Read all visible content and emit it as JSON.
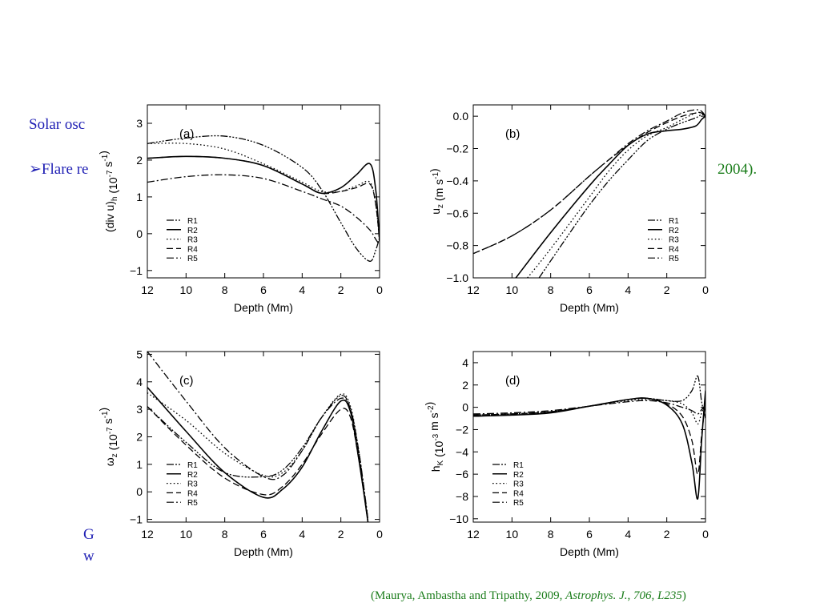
{
  "slide": {
    "line1": "Solar osc",
    "line2_bullet": "➢",
    "line2": "Flare re",
    "line2_end": "2004).",
    "line3a": "G",
    "line3b": "w"
  },
  "citation": {
    "pre": "(Maurya, Ambastha and Tripathy, 2009, ",
    "journal": "Astrophys. J., 706, L235",
    "post": ")"
  },
  "colors": {
    "slide_text": "#1f1fb4",
    "citation": "#1b7d1b",
    "curves": "#000000"
  },
  "chart_data": [
    {
      "panel": "(a)",
      "type": "line",
      "xlabel": "Depth (Mm)",
      "ylabel": "(div u)_h (10^-7 s^-1)",
      "xlim": [
        12,
        0
      ],
      "ylim": [
        -1.2,
        3.5
      ],
      "xticks": [
        12,
        10,
        8,
        6,
        4,
        2,
        0
      ],
      "yticks": [
        -1,
        0,
        1,
        2,
        3
      ],
      "legend": [
        "R1",
        "R2",
        "R3",
        "R4",
        "R5"
      ],
      "legend_position": "bottom-left",
      "series": [
        {
          "name": "R1",
          "x": [
            12,
            10,
            8,
            6,
            4,
            3,
            2,
            1.2,
            0.5,
            0.2,
            0
          ],
          "y": [
            2.45,
            2.6,
            2.65,
            2.4,
            1.8,
            1.2,
            0.3,
            -0.4,
            -0.75,
            -0.45,
            -0.1
          ]
        },
        {
          "name": "R2",
          "x": [
            12,
            10,
            8,
            6,
            4,
            3,
            2,
            1.2,
            0.5,
            0.2,
            0
          ],
          "y": [
            2.05,
            2.1,
            2.05,
            1.85,
            1.35,
            1.1,
            1.25,
            1.6,
            1.9,
            1.2,
            -0.2
          ]
        },
        {
          "name": "R3",
          "x": [
            12,
            10,
            8,
            6,
            4,
            3,
            2,
            1.2,
            0.5,
            0.2,
            0
          ],
          "y": [
            2.45,
            2.45,
            2.3,
            1.9,
            1.4,
            1.15,
            1.15,
            1.3,
            1.4,
            0.8,
            -0.2
          ]
        },
        {
          "name": "R4",
          "x": [
            12,
            10,
            8,
            6,
            4,
            3,
            2,
            1.2,
            0.5,
            0.2,
            0
          ],
          "y": [
            2.05,
            2.1,
            2.05,
            1.85,
            1.35,
            1.1,
            1.15,
            1.25,
            1.35,
            0.8,
            -0.2
          ]
        },
        {
          "name": "R5",
          "x": [
            12,
            10,
            8,
            6,
            4,
            3,
            2,
            1.2,
            0.5,
            0.2,
            0
          ],
          "y": [
            1.4,
            1.55,
            1.6,
            1.5,
            1.15,
            0.95,
            0.75,
            0.45,
            0.1,
            -0.15,
            -0.3
          ]
        }
      ]
    },
    {
      "panel": "(b)",
      "type": "line",
      "xlabel": "Depth (Mm)",
      "ylabel": "u_z (m s^-1)",
      "xlim": [
        12,
        0
      ],
      "ylim": [
        -1.0,
        0.07
      ],
      "xticks": [
        12,
        10,
        8,
        6,
        4,
        2,
        0
      ],
      "yticks": [
        -1.0,
        -0.8,
        -0.6,
        -0.4,
        -0.2,
        0.0
      ],
      "legend": [
        "R1",
        "R2",
        "R3",
        "R4",
        "R5"
      ],
      "legend_position": "bottom-right",
      "series": [
        {
          "name": "R1",
          "x": [
            8.6,
            7,
            6,
            5,
            4,
            3,
            2,
            1.2,
            0.5,
            0.2,
            0
          ],
          "y": [
            -1.0,
            -0.72,
            -0.55,
            -0.4,
            -0.27,
            -0.15,
            -0.08,
            -0.04,
            -0.01,
            0.01,
            0.0
          ]
        },
        {
          "name": "R2",
          "x": [
            9.8,
            8,
            6,
            5,
            4,
            3,
            2,
            1.2,
            0.5,
            0.2,
            0
          ],
          "y": [
            -1.0,
            -0.72,
            -0.43,
            -0.3,
            -0.18,
            -0.11,
            -0.09,
            -0.08,
            -0.06,
            -0.02,
            0.0
          ]
        },
        {
          "name": "R3",
          "x": [
            9.2,
            8,
            6,
            5,
            4,
            3,
            2,
            1.2,
            0.5,
            0.2,
            0
          ],
          "y": [
            -1.0,
            -0.82,
            -0.5,
            -0.34,
            -0.21,
            -0.12,
            -0.07,
            -0.02,
            0.02,
            0.02,
            0.0
          ]
        },
        {
          "name": "R4",
          "x": [
            12,
            10,
            8,
            6,
            5,
            4,
            3,
            2,
            1.2,
            0.5,
            0.2,
            0
          ],
          "y": [
            -0.85,
            -0.74,
            -0.58,
            -0.37,
            -0.27,
            -0.18,
            -0.1,
            -0.04,
            0.0,
            0.02,
            0.02,
            0.0
          ]
        },
        {
          "name": "R5",
          "x": [
            12,
            10,
            8,
            6,
            5,
            4,
            3,
            2,
            1.2,
            0.5,
            0.2,
            0
          ],
          "y": [
            -0.85,
            -0.74,
            -0.58,
            -0.37,
            -0.27,
            -0.17,
            -0.09,
            -0.03,
            0.02,
            0.04,
            0.03,
            0.0
          ]
        }
      ]
    },
    {
      "panel": "(c)",
      "type": "line",
      "xlabel": "Depth (Mm)",
      "ylabel": "ω_z (10^-7 s^-1)",
      "xlim": [
        12,
        0
      ],
      "ylim": [
        -1.1,
        5.1
      ],
      "xticks": [
        12,
        10,
        8,
        6,
        4,
        2,
        0
      ],
      "yticks": [
        -1,
        0,
        1,
        2,
        3,
        4,
        5
      ],
      "legend": [
        "R1",
        "R2",
        "R3",
        "R4",
        "R5"
      ],
      "legend_position": "bottom-left",
      "series": [
        {
          "name": "R1",
          "x": [
            12,
            10,
            8,
            6,
            5,
            4,
            3,
            2,
            1.5,
            1.1,
            0.8,
            0.6
          ],
          "y": [
            3.1,
            1.8,
            0.7,
            0.55,
            0.8,
            1.6,
            2.7,
            3.5,
            3.0,
            1.5,
            0.0,
            -1.1
          ]
        },
        {
          "name": "R2",
          "x": [
            12,
            10,
            8,
            6,
            5,
            4,
            3,
            2,
            1.5,
            1.1,
            0.8,
            0.6
          ],
          "y": [
            3.8,
            2.2,
            0.7,
            -0.2,
            0.1,
            0.9,
            2.2,
            3.3,
            2.9,
            1.3,
            -0.1,
            -1.1
          ]
        },
        {
          "name": "R3",
          "x": [
            12,
            10,
            8,
            6,
            5,
            4,
            3,
            2,
            1.5,
            1.1,
            0.8,
            0.6
          ],
          "y": [
            3.6,
            2.6,
            1.4,
            0.6,
            0.7,
            1.5,
            2.7,
            3.55,
            3.1,
            1.6,
            0.1,
            -1.0
          ]
        },
        {
          "name": "R4",
          "x": [
            12,
            10,
            8,
            6,
            5,
            4,
            3,
            2,
            1.5,
            1.1,
            0.8,
            0.6
          ],
          "y": [
            3.1,
            1.7,
            0.5,
            -0.1,
            0.2,
            1.0,
            2.1,
            3.0,
            2.7,
            1.3,
            -0.1,
            -1.1
          ]
        },
        {
          "name": "R5",
          "x": [
            12,
            10,
            8,
            6,
            5,
            4,
            3,
            2,
            1.5,
            1.1,
            0.8,
            0.6
          ],
          "y": [
            5.1,
            3.3,
            1.6,
            0.55,
            0.6,
            1.5,
            2.7,
            3.4,
            3.0,
            1.6,
            0.1,
            -1.0
          ]
        }
      ]
    },
    {
      "panel": "(d)",
      "type": "line",
      "xlabel": "Depth (Mm)",
      "ylabel": "h_K (10^-3 m s^-2)",
      "xlim": [
        12,
        0
      ],
      "ylim": [
        -10.3,
        5.0
      ],
      "xticks": [
        12,
        10,
        8,
        6,
        4,
        2,
        0
      ],
      "yticks": [
        -10,
        -8,
        -6,
        -4,
        -2,
        0,
        2,
        4
      ],
      "legend": [
        "R1",
        "R2",
        "R3",
        "R4",
        "R5"
      ],
      "legend_position": "bottom-left",
      "series": [
        {
          "name": "R1",
          "x": [
            12,
            10,
            8,
            6,
            4,
            3,
            2,
            1.2,
            0.7,
            0.4,
            0.2,
            0
          ],
          "y": [
            -0.7,
            -0.6,
            -0.4,
            0.1,
            0.7,
            0.8,
            0.6,
            0.6,
            1.5,
            2.8,
            0.5,
            -1.0
          ]
        },
        {
          "name": "R2",
          "x": [
            12,
            10,
            8,
            6,
            4,
            3,
            2,
            1.2,
            0.7,
            0.4,
            0.2,
            0
          ],
          "y": [
            -0.8,
            -0.7,
            -0.5,
            0.1,
            0.7,
            0.8,
            0.2,
            -1.5,
            -5.0,
            -8.2,
            -3.0,
            1.5
          ]
        },
        {
          "name": "R3",
          "x": [
            12,
            10,
            8,
            6,
            4,
            3,
            2,
            1.2,
            0.7,
            0.4,
            0.2,
            0
          ],
          "y": [
            -0.7,
            -0.6,
            -0.4,
            0.1,
            0.6,
            0.7,
            0.6,
            0.3,
            -0.5,
            -1.5,
            -0.5,
            0.3
          ]
        },
        {
          "name": "R4",
          "x": [
            12,
            10,
            8,
            6,
            4,
            3,
            2,
            1.2,
            0.7,
            0.4,
            0.2,
            0
          ],
          "y": [
            -0.7,
            -0.6,
            -0.4,
            0.1,
            0.7,
            0.8,
            0.3,
            -0.8,
            -3.0,
            -6.0,
            -2.5,
            0.5
          ]
        },
        {
          "name": "R5",
          "x": [
            12,
            10,
            8,
            6,
            4,
            3,
            2,
            1.2,
            0.7,
            0.4,
            0.2,
            0
          ],
          "y": [
            -0.6,
            -0.5,
            -0.3,
            0.1,
            0.5,
            0.6,
            0.4,
            0.0,
            -0.3,
            -0.6,
            -0.2,
            0.2
          ]
        }
      ]
    }
  ]
}
